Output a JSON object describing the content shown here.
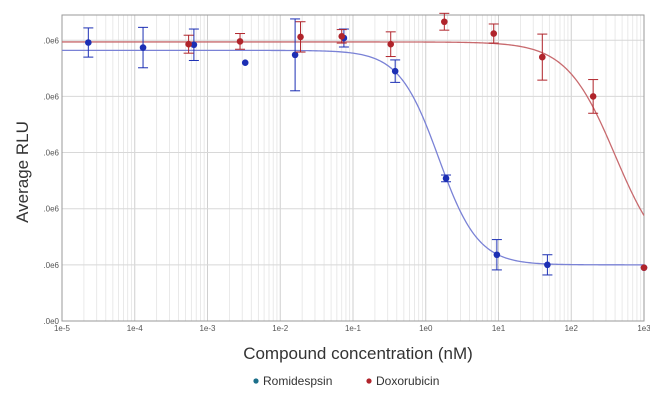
{
  "chart_data": {
    "type": "scatter",
    "xscale": "log",
    "xlim": [
      1e-05,
      1000
    ],
    "ylim": [
      0,
      5.45
    ],
    "grid": true,
    "xlabel": "Compound concentration (nM)",
    "ylabel": "Average RLU",
    "x_ticks": [
      {
        "value": 1e-05,
        "label": "1e-5"
      },
      {
        "value": 0.0001,
        "label": "1e-4"
      },
      {
        "value": 0.001,
        "label": "1e-3"
      },
      {
        "value": 0.01,
        "label": "1e-2"
      },
      {
        "value": 0.1,
        "label": "1e-1"
      },
      {
        "value": 1,
        "label": "1e0"
      },
      {
        "value": 10,
        "label": "1e1"
      },
      {
        "value": 100,
        "label": "1e2"
      },
      {
        "value": 1000,
        "label": "1e3"
      }
    ],
    "y_ticks": [
      {
        "value": 0,
        "label": ".0e0"
      },
      {
        "value": 1,
        "label": ".0e6"
      },
      {
        "value": 2,
        "label": ".0e6"
      },
      {
        "value": 3,
        "label": ".0e6"
      },
      {
        "value": 4,
        "label": ".0e6"
      },
      {
        "value": 5,
        "label": ".0e6"
      }
    ],
    "legend_position": "bottom-center",
    "series": [
      {
        "name": "Romidespsin",
        "color": "#1c2fb4",
        "fit_color": "#7a82d6",
        "fit": {
          "top": 4.82,
          "bottom": 1.0,
          "ec50": 1.5,
          "hill": 1.6
        },
        "points": [
          {
            "x": 2.3e-05,
            "y": 4.96,
            "err": 0.26
          },
          {
            "x": 0.00013,
            "y": 4.87,
            "err": 0.36
          },
          {
            "x": 0.00065,
            "y": 4.92,
            "err": 0.28
          },
          {
            "x": 0.0033,
            "y": 4.6,
            "err": 0
          },
          {
            "x": 0.016,
            "y": 4.74,
            "err": 0.64
          },
          {
            "x": 0.075,
            "y": 5.04,
            "err": 0.16
          },
          {
            "x": 0.38,
            "y": 4.45,
            "err": 0.2
          },
          {
            "x": 1.9,
            "y": 2.54,
            "err": 0.06
          },
          {
            "x": 9.5,
            "y": 1.18,
            "err": 0.27
          },
          {
            "x": 47,
            "y": 1.0,
            "err": 0.18
          },
          {
            "x": 1000,
            "y": 0.95,
            "err": 0
          }
        ]
      },
      {
        "name": "Doxorubicin",
        "color": "#b0242b",
        "fit_color": "#c86a6e",
        "fit": {
          "top": 4.97,
          "bottom": 0.94,
          "ec50": 400,
          "hill": 1.3
        },
        "points": [
          {
            "x": 0.00055,
            "y": 4.93,
            "err": 0.16
          },
          {
            "x": 0.0028,
            "y": 4.98,
            "err": 0.14
          },
          {
            "x": 0.019,
            "y": 5.06,
            "err": 0.27
          },
          {
            "x": 0.07,
            "y": 5.07,
            "err": 0.12
          },
          {
            "x": 0.33,
            "y": 4.93,
            "err": 0.22
          },
          {
            "x": 1.8,
            "y": 5.33,
            "err": 0.15
          },
          {
            "x": 8.6,
            "y": 5.12,
            "err": 0.17
          },
          {
            "x": 40,
            "y": 4.7,
            "err": 0.41
          },
          {
            "x": 200,
            "y": 4.0,
            "err": 0.3
          },
          {
            "x": 1000,
            "y": 0.95,
            "err": 0
          }
        ]
      }
    ]
  }
}
